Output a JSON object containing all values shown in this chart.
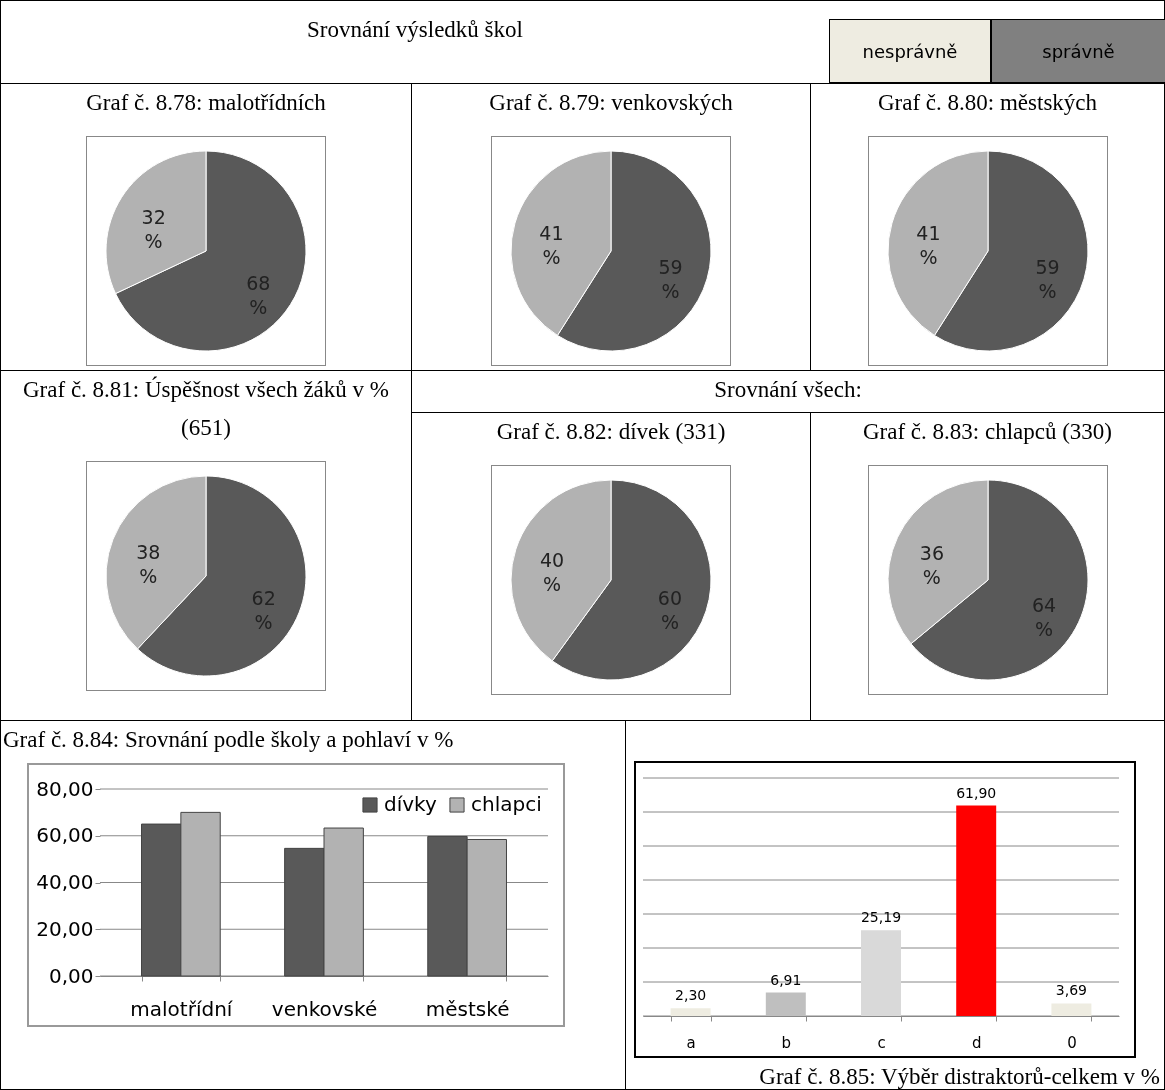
{
  "chart_data": [
    {
      "type": "other",
      "title": "Srovnání výsledků škol",
      "annotations": [
        "nesprávně",
        "správně"
      ]
    },
    {
      "type": "pie",
      "title": "Graf č. 8.78: malotřídních",
      "categories": [
        null,
        null
      ],
      "values": [
        68,
        32
      ],
      "colors": [
        "#595959",
        "#b2b2b2"
      ],
      "value_labels": [
        "68 %",
        "32 %"
      ]
    },
    {
      "type": "pie",
      "title": "Graf č. 8.79: venkovských",
      "categories": [
        null,
        null
      ],
      "values": [
        59,
        41
      ],
      "colors": [
        "#595959",
        "#b2b2b2"
      ],
      "value_labels": [
        "59 %",
        "41 %"
      ]
    },
    {
      "type": "pie",
      "title": "Graf č. 8.80: městských",
      "categories": [
        null,
        null
      ],
      "values": [
        59,
        41
      ],
      "colors": [
        "#595959",
        "#b2b2b2"
      ],
      "value_labels": [
        "59 %",
        "41 %"
      ]
    },
    {
      "type": "pie",
      "title": "Graf č. 8.81: Úspěšnost všech žáků v % (651)",
      "categories": [
        null,
        null
      ],
      "values": [
        62,
        38
      ],
      "colors": [
        "#595959",
        "#b2b2b2"
      ],
      "value_labels": [
        "62 %",
        "38 %"
      ]
    },
    {
      "type": "other",
      "title": "Srovnání všech:"
    },
    {
      "type": "pie",
      "title": "Graf č. 8.82: dívek (331)",
      "categories": [
        null,
        null
      ],
      "values": [
        60,
        40
      ],
      "colors": [
        "#595959",
        "#b2b2b2"
      ],
      "value_labels": [
        "60 %",
        "40 %"
      ]
    },
    {
      "type": "pie",
      "title": "Graf č. 8.83: chlapců (330)",
      "categories": [
        null,
        null
      ],
      "values": [
        64,
        36
      ],
      "colors": [
        "#595959",
        "#b2b2b2"
      ],
      "value_labels": [
        "64 %",
        "36 %"
      ]
    },
    {
      "type": "bar",
      "title": "Graf č. 8.84: Srovnání podle školy a pohlaví v %",
      "categories": [
        "malotřídní",
        "venkovské",
        "městské"
      ],
      "series": [
        {
          "name": "dívky",
          "color": "#595959",
          "values": [
            65.0,
            54.6,
            59.7
          ]
        },
        {
          "name": "chlapci",
          "color": "#b2b2b2",
          "values": [
            70.0,
            63.3,
            58.4
          ]
        }
      ],
      "ylim": [
        0,
        80
      ],
      "yticks": [
        {
          "value": 0,
          "label": "0,00"
        },
        {
          "value": 20,
          "label": "20,00"
        },
        {
          "value": 40,
          "label": "40,00"
        },
        {
          "value": 60,
          "label": "60,00"
        },
        {
          "value": 80,
          "label": "80,00"
        }
      ],
      "grid": "y",
      "legend": "top right"
    },
    {
      "type": "bar",
      "title": "Graf č. 8.85: Výběr distraktorů-celkem v %",
      "categories": [
        "a",
        "b",
        "c",
        "d",
        "0"
      ],
      "values": [
        2.3,
        6.91,
        25.19,
        61.9,
        3.69
      ],
      "colors": [
        "#eeece1",
        "#bfbfbf",
        "#d9d9d9",
        "#ff0000",
        "#eeece1"
      ],
      "value_labels": [
        "2,30",
        "6,91",
        "25,19",
        "61,90",
        "3,69"
      ],
      "ylim": [
        0,
        70
      ],
      "yticks": [
        {
          "value": 0,
          "label": null
        },
        {
          "value": 10,
          "label": null
        },
        {
          "value": 20,
          "label": null
        },
        {
          "value": 30,
          "label": null
        },
        {
          "value": 40,
          "label": null
        },
        {
          "value": 50,
          "label": null
        },
        {
          "value": 60,
          "label": null
        },
        {
          "value": 70,
          "label": null
        }
      ],
      "grid": "y",
      "tick_labels": "x"
    }
  ]
}
